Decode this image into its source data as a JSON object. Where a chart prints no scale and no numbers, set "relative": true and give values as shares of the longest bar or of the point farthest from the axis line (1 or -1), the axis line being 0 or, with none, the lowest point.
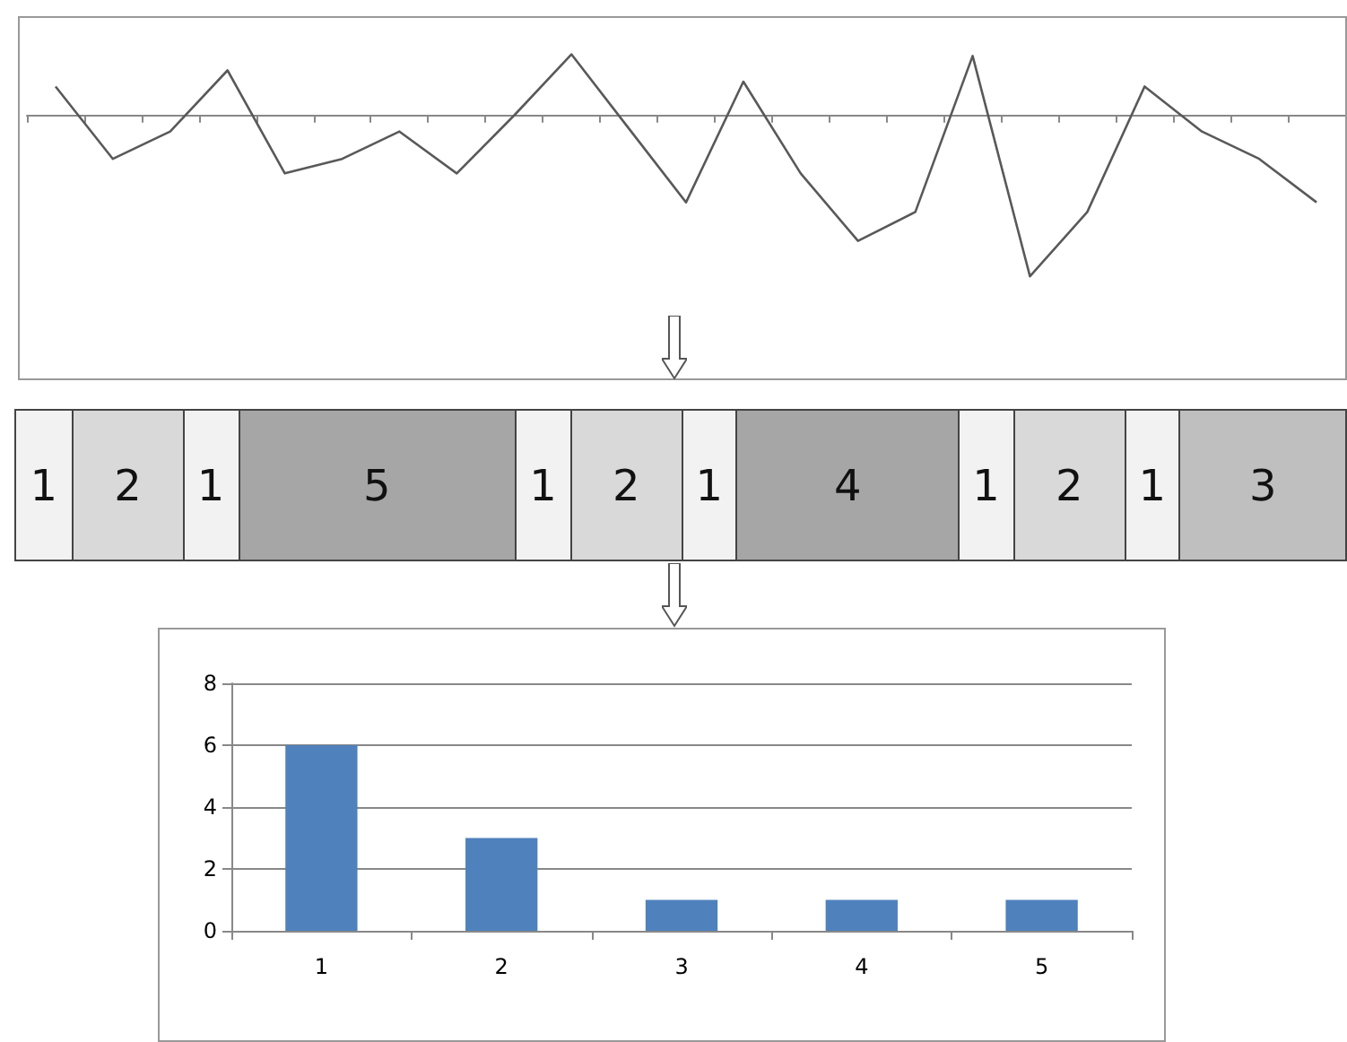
{
  "chart_data": [
    {
      "type": "line",
      "relative": true,
      "categories": [
        null,
        null,
        null,
        null,
        null,
        null,
        null,
        null,
        null,
        null,
        null,
        null,
        null,
        null,
        null,
        null,
        null,
        null,
        null,
        null,
        null,
        null,
        null
      ],
      "color": "#595959",
      "marker": "none",
      "grid": false,
      "values": [
        0.18,
        -0.27,
        -0.1,
        0.28,
        -0.36,
        -0.27,
        -0.1,
        -0.36,
        0,
        0.38,
        -0.08,
        -0.54,
        0.21,
        -0.36,
        -0.78,
        -0.6,
        0.37,
        -1,
        -0.6,
        0.18,
        -0.1,
        -0.27,
        -0.54
      ]
    },
    {
      "type": "other",
      "values": [
        1,
        2,
        1,
        5,
        1,
        2,
        1,
        4,
        1,
        2,
        1,
        3
      ],
      "colors": [
        "#f2f2f2",
        "#d9d9d9",
        "#f2f2f2",
        "#a6a6a6",
        "#f2f2f2",
        "#d9d9d9",
        "#f2f2f2",
        "#a6a6a6",
        "#f2f2f2",
        "#d9d9d9",
        "#f2f2f2",
        "#bfbfbf"
      ],
      "data_labels": true
    },
    {
      "type": "bar",
      "categories": [
        "1",
        "2",
        "3",
        "4",
        "5"
      ],
      "values": [
        6,
        3,
        1,
        1,
        1
      ],
      "color": "#4f81bd",
      "ylim": [
        0,
        8
      ],
      "yticks": [
        0,
        2,
        4,
        6,
        8
      ],
      "grid": "y"
    }
  ]
}
